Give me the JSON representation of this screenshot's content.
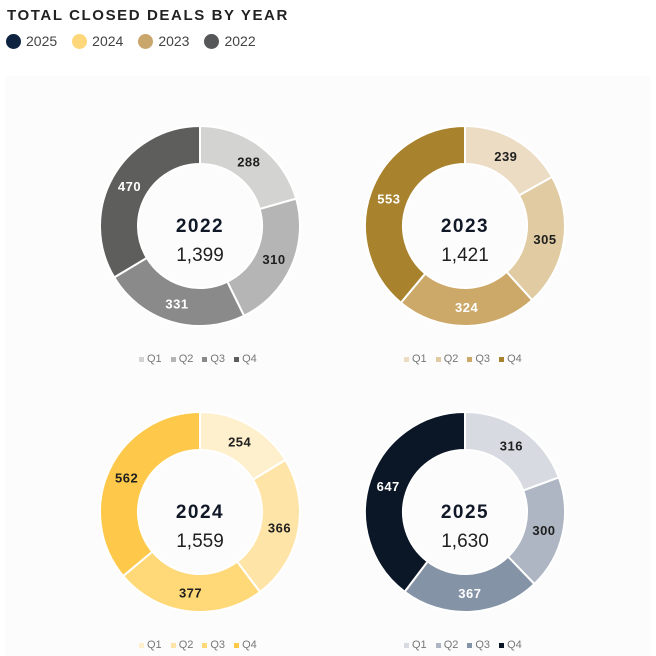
{
  "title": "TOTAL CLOSED DEALS BY YEAR",
  "legend": [
    {
      "label": "2025",
      "color": "#0d2340"
    },
    {
      "label": "2024",
      "color": "#fdd77a"
    },
    {
      "label": "2023",
      "color": "#c9a76c"
    },
    {
      "label": "2022",
      "color": "#555759"
    }
  ],
  "chart_data": [
    {
      "type": "pie",
      "subtype": "donut",
      "year": "2022",
      "total": "1,399",
      "categories": [
        "Q1",
        "Q2",
        "Q3",
        "Q4"
      ],
      "values": [
        288,
        310,
        331,
        470
      ],
      "colors": [
        "#d3d3d2",
        "#b5b5b5",
        "#8a8a8a",
        "#5e5e5c"
      ],
      "label_colors": [
        "#1f1f1f",
        "#1f1f1f",
        "#ffffff",
        "#ffffff"
      ]
    },
    {
      "type": "pie",
      "subtype": "donut",
      "year": "2023",
      "total": "1,421",
      "categories": [
        "Q1",
        "Q2",
        "Q3",
        "Q4"
      ],
      "values": [
        239,
        305,
        324,
        553
      ],
      "colors": [
        "#ecdcc4",
        "#e0cba3",
        "#cca869",
        "#a9822e"
      ],
      "label_colors": [
        "#1f1f1f",
        "#1f1f1f",
        "#ffffff",
        "#ffffff"
      ]
    },
    {
      "type": "pie",
      "subtype": "donut",
      "year": "2024",
      "total": "1,559",
      "categories": [
        "Q1",
        "Q2",
        "Q3",
        "Q4"
      ],
      "values": [
        254,
        366,
        377,
        562
      ],
      "colors": [
        "#fef0cc",
        "#ffe4a8",
        "#ffd878",
        "#fec94b"
      ],
      "label_colors": [
        "#1f1f1f",
        "#1f1f1f",
        "#1f1f1f",
        "#1f1f1f"
      ]
    },
    {
      "type": "pie",
      "subtype": "donut",
      "year": "2025",
      "total": "1,630",
      "categories": [
        "Q1",
        "Q2",
        "Q3",
        "Q4"
      ],
      "values": [
        316,
        300,
        367,
        647
      ],
      "colors": [
        "#d7dbe1",
        "#adb6c2",
        "#8593a6",
        "#0b1626"
      ],
      "label_colors": [
        "#1f1f1f",
        "#1f1f1f",
        "#ffffff",
        "#ffffff"
      ]
    }
  ]
}
